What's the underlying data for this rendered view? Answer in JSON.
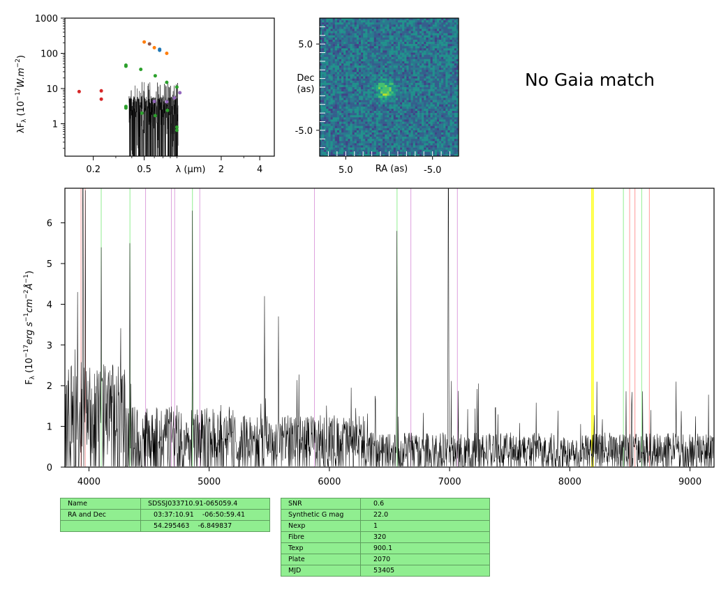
{
  "gaia_text": "No Gaia match",
  "chart_data": [
    {
      "type": "scatter",
      "role": "sed",
      "xlabel": "λ (μm)",
      "ylabel": "λF_λ (10^-17 W.m^-2)",
      "x_scale": "log",
      "y_scale": "log",
      "xlim": [
        0.12,
        5.2
      ],
      "ylim": [
        0.12,
        1000
      ],
      "xticks": [
        {
          "v": 0.2,
          "label": "0.2"
        },
        {
          "v": 0.5,
          "label": "0.5"
        },
        {
          "v": 2,
          "label": "2"
        },
        {
          "v": 4,
          "label": "4"
        }
      ],
      "yticks": [
        {
          "v": 1,
          "label": "1"
        },
        {
          "v": 10,
          "label": "10"
        },
        {
          "v": 100,
          "label": "100"
        },
        {
          "v": 1000,
          "label": "1000"
        }
      ],
      "points": [
        {
          "x": 0.155,
          "y": 8.2,
          "color": "#d62728"
        },
        {
          "x": 0.231,
          "y": 8.6,
          "color": "#d62728"
        },
        {
          "x": 0.231,
          "y": 5.0,
          "color": "#d62728"
        },
        {
          "x": 0.36,
          "y": 46,
          "color": "#2ca02c"
        },
        {
          "x": 0.36,
          "y": 43,
          "color": "#2ca02c"
        },
        {
          "x": 0.36,
          "y": 3.1,
          "color": "#2ca02c"
        },
        {
          "x": 0.36,
          "y": 2.8,
          "color": "#2ca02c"
        },
        {
          "x": 0.47,
          "y": 35,
          "color": "#2ca02c"
        },
        {
          "x": 0.48,
          "y": 2.0,
          "color": "#2ca02c"
        },
        {
          "x": 0.5,
          "y": 210,
          "color": "#ff7f0e"
        },
        {
          "x": 0.55,
          "y": 185,
          "color": "#8c564b"
        },
        {
          "x": 0.6,
          "y": 145,
          "color": "#ff7f0e"
        },
        {
          "x": 0.61,
          "y": 23,
          "color": "#2ca02c"
        },
        {
          "x": 0.61,
          "y": 1.7,
          "color": "#2ca02c"
        },
        {
          "x": 0.6,
          "y": 4.3,
          "color": "#9467bd"
        },
        {
          "x": 0.66,
          "y": 130,
          "color": "#1f77b4"
        },
        {
          "x": 0.66,
          "y": 122,
          "color": "#1f77b4"
        },
        {
          "x": 0.75,
          "y": 100,
          "color": "#ff7f0e"
        },
        {
          "x": 0.75,
          "y": 15,
          "color": "#2ca02c"
        },
        {
          "x": 0.76,
          "y": 2.4,
          "color": "#2ca02c"
        },
        {
          "x": 0.75,
          "y": 4.2,
          "color": "#9467bd"
        },
        {
          "x": 0.86,
          "y": 5.4,
          "color": "#9467bd"
        },
        {
          "x": 0.9,
          "y": 11,
          "color": "#2ca02c"
        },
        {
          "x": 0.9,
          "y": 0.8,
          "color": "#2ca02c"
        },
        {
          "x": 0.9,
          "y": 0.65,
          "color": "#2ca02c"
        },
        {
          "x": 0.95,
          "y": 7.6,
          "color": "#9467bd"
        }
      ],
      "spectrum_range_um": [
        0.38,
        0.92
      ]
    },
    {
      "type": "heatmap",
      "role": "image-cutout",
      "xlabel": "RA (as)",
      "ylabel": "Dec\n(as)",
      "xticks": [
        {
          "v": 5.0,
          "label": "5.0"
        },
        {
          "v": -5.0,
          "label": "-5.0"
        }
      ],
      "yticks": [
        {
          "v": 5.0,
          "label": "5.0"
        },
        {
          "v": -5.0,
          "label": "-5.0"
        }
      ],
      "xlim": [
        8.0,
        -8.0
      ],
      "ylim": [
        -8.0,
        8.0
      ],
      "colormap": "viridis",
      "source_center_as": [
        0.4,
        -0.4
      ]
    },
    {
      "type": "line",
      "role": "spectrum",
      "xlabel": "",
      "ylabel": "F_λ (10^-17 erg s^-1 cm^-2 Å^-1)",
      "xlim": [
        3800,
        9200
      ],
      "ylim": [
        0,
        6.85
      ],
      "xticks": [
        4000,
        5000,
        6000,
        7000,
        8000,
        9000
      ],
      "yticks": [
        0,
        1,
        2,
        3,
        4,
        5,
        6
      ],
      "line_color": "#000000",
      "features": [
        {
          "x": 3906,
          "y": 4.3
        },
        {
          "x": 3950,
          "y": 6.9
        },
        {
          "x": 3970,
          "y": 6.8
        },
        {
          "x": 4102,
          "y": 5.4
        },
        {
          "x": 4341,
          "y": 5.5
        },
        {
          "x": 4861,
          "y": 6.3
        },
        {
          "x": 5460,
          "y": 4.2
        },
        {
          "x": 5577,
          "y": 3.7
        },
        {
          "x": 6563,
          "y": 5.8
        },
        {
          "x": 6990,
          "y": 6.9
        },
        {
          "x": 8885,
          "y": 2.1
        }
      ],
      "vlines": [
        {
          "x": 3934,
          "color": "#ff9999"
        },
        {
          "x": 3969,
          "color": "#ff9999"
        },
        {
          "x": 4102,
          "color": "#90ee90"
        },
        {
          "x": 4341,
          "color": "#90ee90"
        },
        {
          "x": 4471,
          "color": "#dda0dd"
        },
        {
          "x": 4686,
          "color": "#dda0dd"
        },
        {
          "x": 4713,
          "color": "#dda0dd"
        },
        {
          "x": 4861,
          "color": "#90ee90"
        },
        {
          "x": 4922,
          "color": "#dda0dd"
        },
        {
          "x": 5876,
          "color": "#dda0dd"
        },
        {
          "x": 6563,
          "color": "#90ee90"
        },
        {
          "x": 6678,
          "color": "#dda0dd"
        },
        {
          "x": 7065,
          "color": "#dda0dd"
        },
        {
          "x": 8183,
          "color": "#ffff00"
        },
        {
          "x": 8195,
          "color": "#ffff00"
        },
        {
          "x": 8446,
          "color": "#90ee90"
        },
        {
          "x": 8498,
          "color": "#ff9999"
        },
        {
          "x": 8542,
          "color": "#ff9999"
        },
        {
          "x": 8598,
          "color": "#90ee90"
        },
        {
          "x": 8662,
          "color": "#ff9999"
        }
      ]
    }
  ],
  "tables": {
    "left": [
      [
        "Name",
        "SDSSJ033710.91-065059.4"
      ],
      [
        "RA and Dec",
        "03:37:10.91    -06:50:59.41"
      ],
      [
        "",
        "54.295463    -6.849837"
      ]
    ],
    "right": [
      [
        "SNR",
        "0.6"
      ],
      [
        "Synthetic G mag",
        "22.0"
      ],
      [
        "Nexp",
        "1"
      ],
      [
        "Fibre",
        "320"
      ],
      [
        "Texp",
        "900.1"
      ],
      [
        "Plate",
        "2070"
      ],
      [
        "MJD",
        "53405"
      ]
    ]
  }
}
